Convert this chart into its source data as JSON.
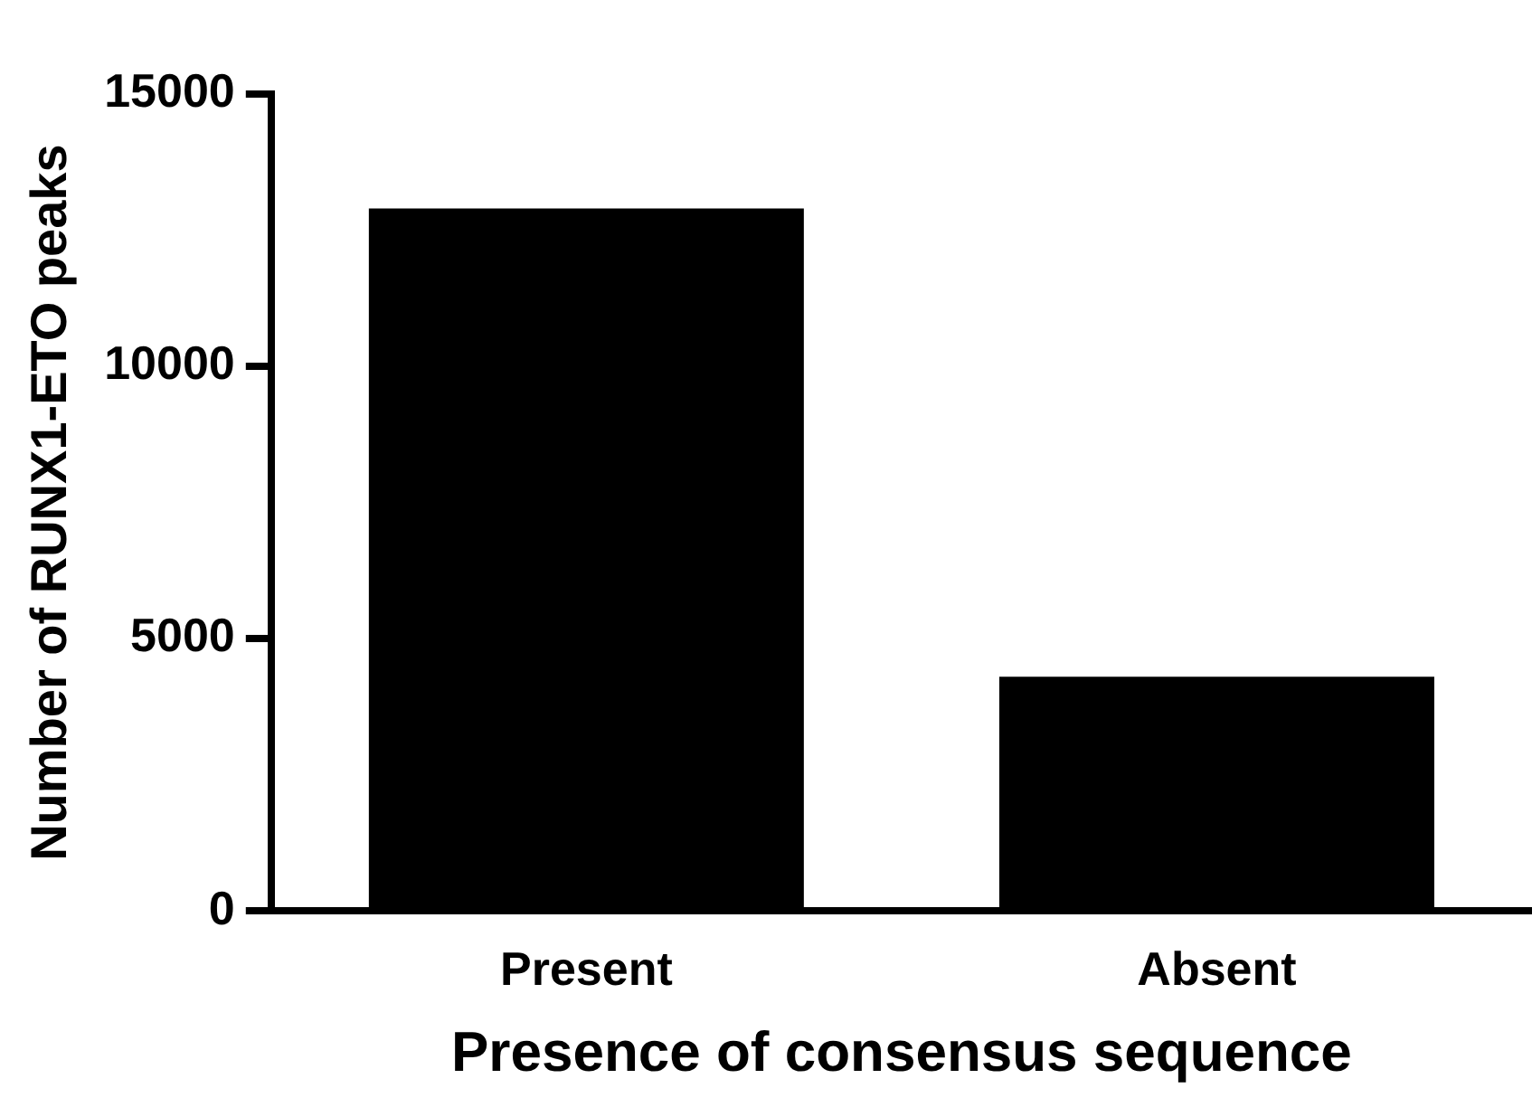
{
  "chart_data": {
    "type": "bar",
    "categories": [
      "Present",
      "Absent"
    ],
    "values": [
      12900,
      4300
    ],
    "color": "#000000",
    "xlabel": "Presence of consensus sequence",
    "ylabel": "Number of RUNX1-ETO peaks",
    "ylim": [
      0,
      15000
    ],
    "yticks": [
      0,
      5000,
      10000,
      15000
    ],
    "grid": false,
    "legend": false
  }
}
